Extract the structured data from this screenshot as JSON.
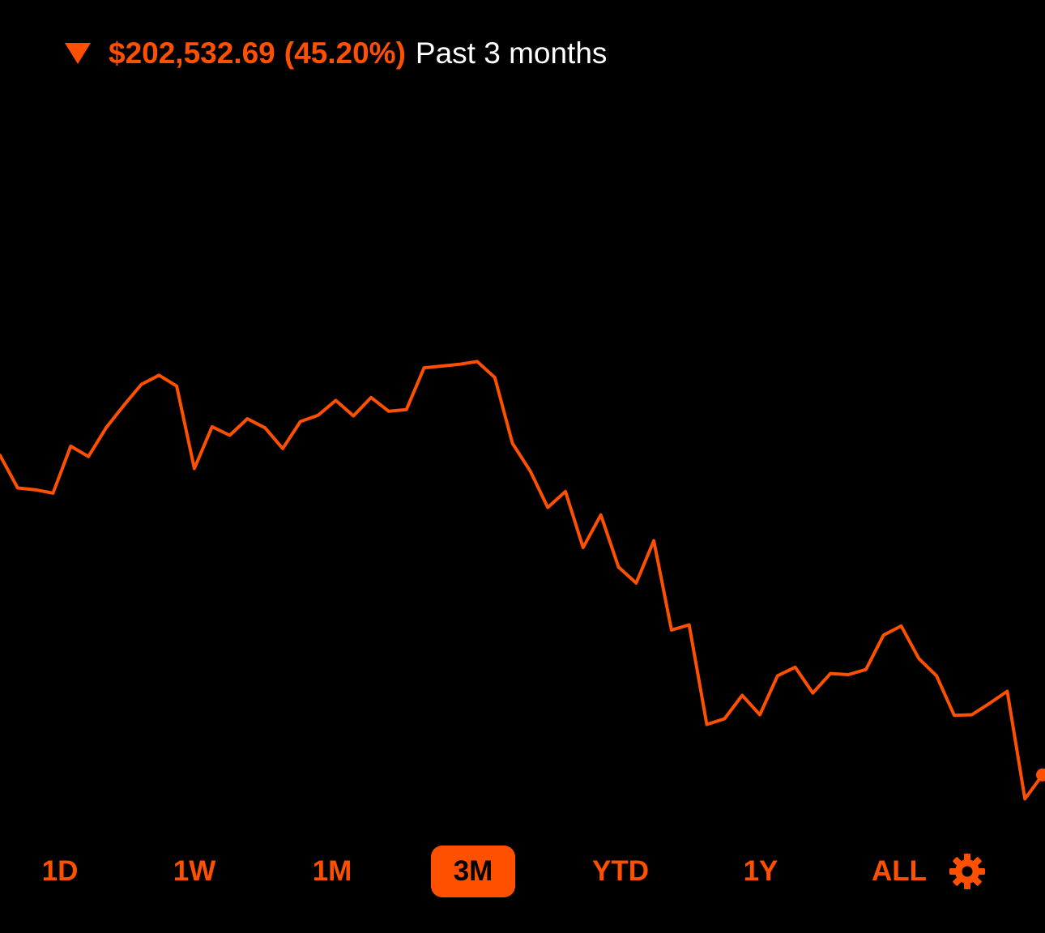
{
  "header": {
    "change_amount": "$202,532.69",
    "change_percent": "(45.20%)",
    "period_label": "Past 3 months",
    "direction_icon": "triangle-down-icon"
  },
  "colors": {
    "accent": "#FF5000",
    "background": "#000000",
    "text_primary": "#FFFFFF"
  },
  "range_selector": {
    "options": [
      "1D",
      "1W",
      "1M",
      "3M",
      "YTD",
      "1Y",
      "ALL"
    ],
    "selected": "3M",
    "settings_icon": "gear-icon"
  },
  "chart_data": {
    "type": "line",
    "title": "",
    "xlabel": "",
    "ylabel": "",
    "grid": false,
    "legend": "none",
    "series": [
      {
        "values": [
          62.2,
          56.5,
          56.2,
          55.6,
          63.8,
          62.0,
          67.0,
          70.9,
          74.6,
          76.2,
          74.3,
          59.9,
          67.2,
          65.7,
          68.6,
          67.0,
          63.4,
          68.1,
          69.2,
          71.8,
          69.1,
          72.3,
          69.9,
          70.2,
          77.5,
          77.8,
          78.1,
          78.6,
          75.8,
          64.3,
          59.5,
          53.1,
          55.9,
          46.1,
          51.8,
          42.7,
          39.9,
          47.3,
          31.7,
          32.6,
          15.2,
          16.2,
          20.3,
          16.9,
          23.7,
          25.2,
          20.7,
          24.1,
          23.9,
          24.8,
          30.8,
          32.4,
          26.7,
          23.7,
          16.8,
          16.9,
          18.9,
          21.0,
          2.2,
          6.4
        ]
      }
    ],
    "ylim": [
      0,
      100
    ]
  }
}
